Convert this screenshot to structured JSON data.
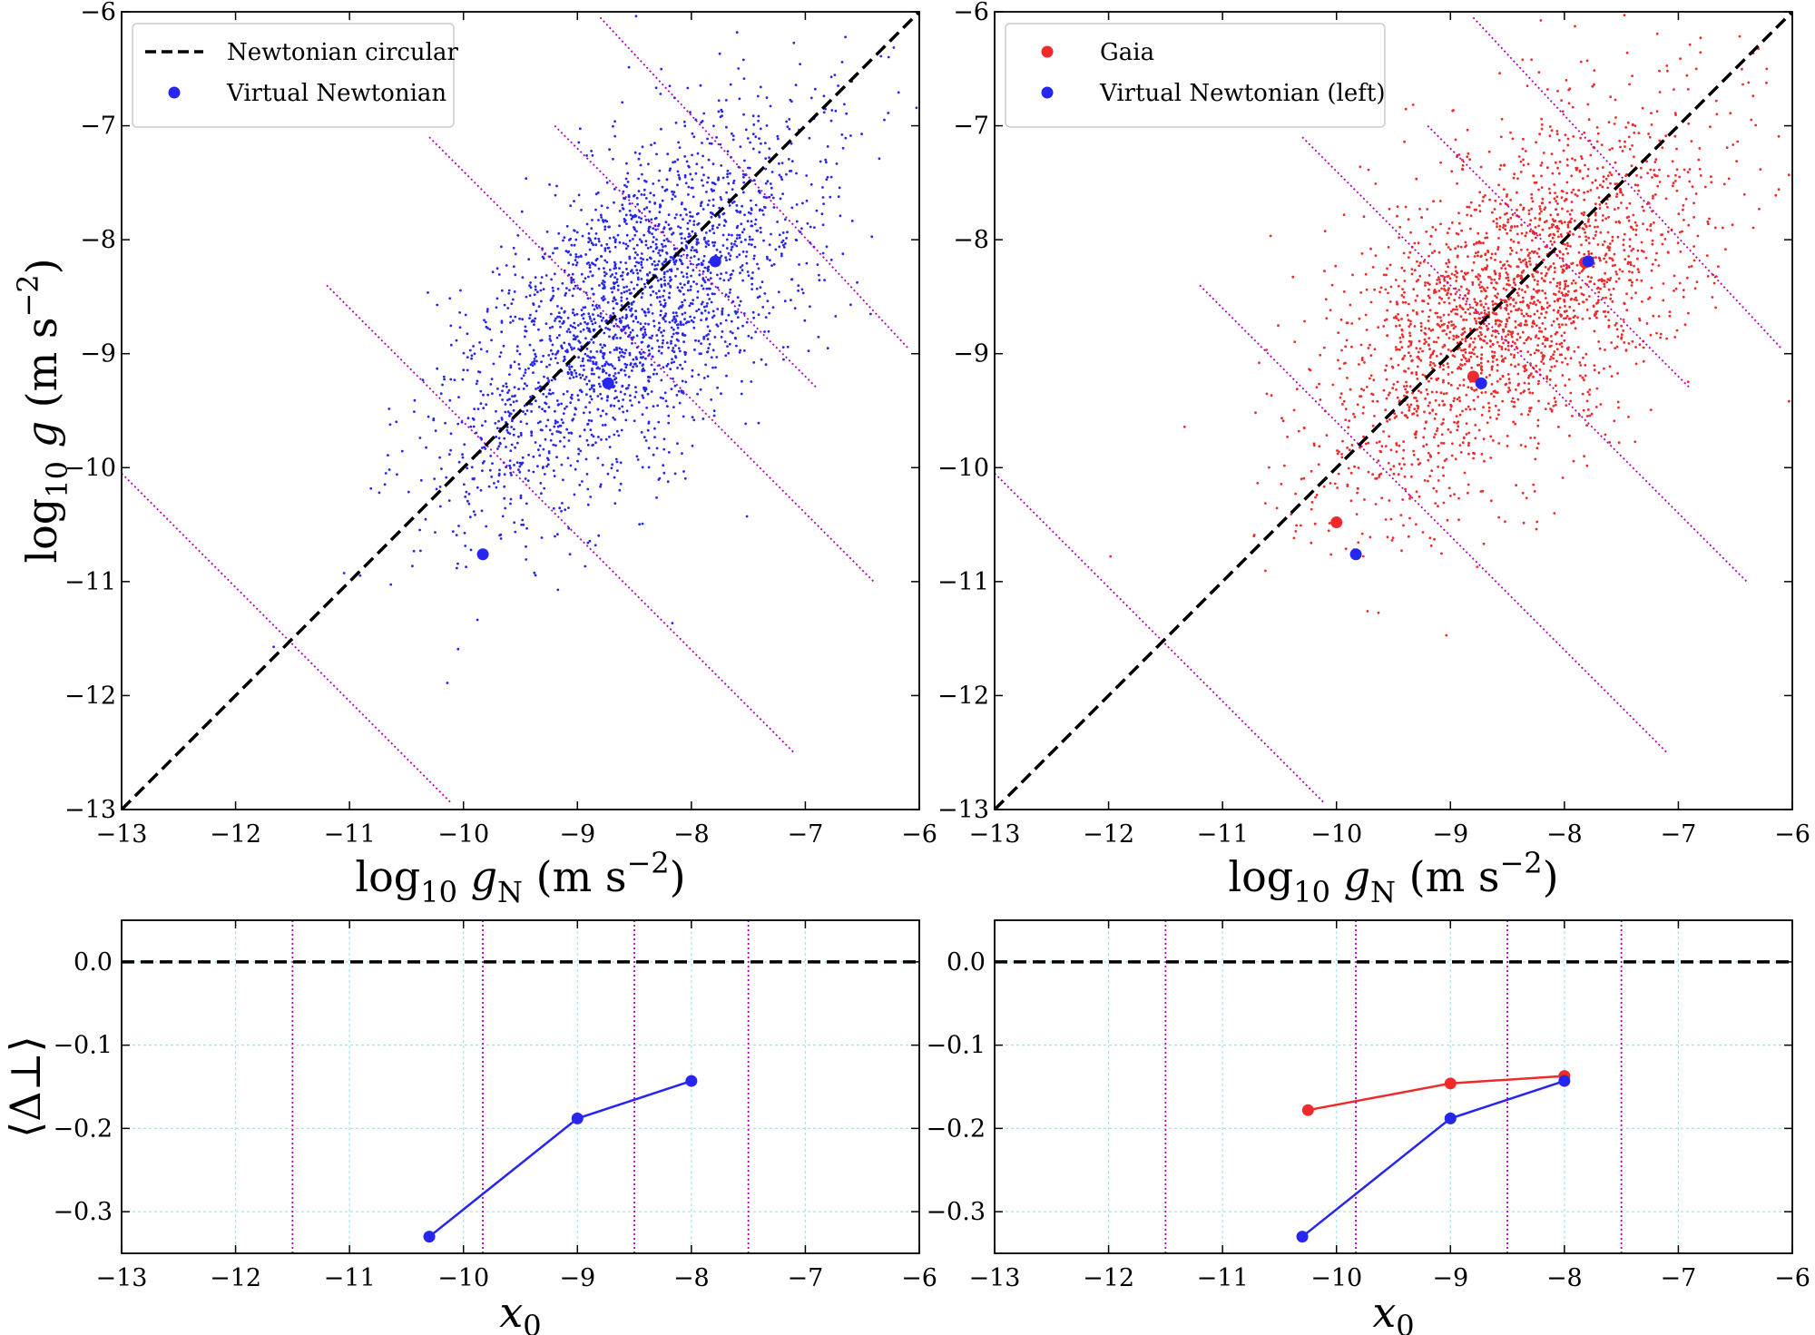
{
  "colors": {
    "virtual": "#2626ee",
    "gaia": "#ee2a2a",
    "bins": "#b400b4",
    "grid": "#9fe7ef",
    "diag": "#000000"
  },
  "chart_data": [
    {
      "id": "top-left",
      "type": "scatter",
      "xlabel_base": "log",
      "xlabel_sub": "10",
      "xlabel_var": "g",
      "xlabel_varsub": "N",
      "xlabel_unit": "(m s",
      "xlabel_exp": "−2",
      "xlabel_close": ")",
      "ylabel_base": "log",
      "ylabel_sub": "10",
      "ylabel_var": "g",
      "ylabel_unit": "(m s",
      "ylabel_exp": "−2",
      "ylabel_close": ")",
      "xlim": [
        -13,
        -6
      ],
      "ylim": [
        -13,
        -6
      ],
      "xticks": [
        "−13",
        "−12",
        "−11",
        "−10",
        "−9",
        "−8",
        "−7",
        "−6"
      ],
      "yticks": [
        "−13",
        "−12",
        "−11",
        "−10",
        "−9",
        "−8",
        "−7",
        "−6"
      ],
      "legend": [
        "Newtonian circular",
        "Virtual Newtonian"
      ],
      "legend_position": "top-left",
      "cloud": {
        "series": "Virtual Newtonian",
        "n_points": 2400,
        "center_x": -8.5,
        "center_y": -8.6,
        "spread_major": 1.05,
        "spread_minor": 0.5
      },
      "bin_medians": {
        "name": "Virtual Newtonian",
        "x": [
          -9.83,
          -8.73,
          -7.79
        ],
        "y": [
          -10.76,
          -9.26,
          -8.19
        ]
      },
      "bin_boundary_lines": [
        {
          "x": [
            -13,
            -10.1
          ],
          "y": [
            -10.05,
            -12.95
          ]
        },
        {
          "x": [
            -11.2,
            -7.1
          ],
          "y": [
            -8.4,
            -12.5
          ]
        },
        {
          "x": [
            -10.3,
            -6.4
          ],
          "y": [
            -7.1,
            -11.0
          ]
        },
        {
          "x": [
            -9.2,
            -6.9
          ],
          "y": [
            -7.0,
            -9.3
          ]
        },
        {
          "x": [
            -8.8,
            -6.1
          ],
          "y": [
            -6.05,
            -8.95
          ]
        }
      ],
      "diagonal": {
        "name": "Newtonian circular",
        "x": [
          -13,
          -6
        ],
        "y": [
          -13,
          -6
        ]
      }
    },
    {
      "id": "top-right",
      "type": "scatter",
      "xlabel_base": "log",
      "xlabel_sub": "10",
      "xlabel_var": "g",
      "xlabel_varsub": "N",
      "xlabel_unit": "(m s",
      "xlabel_exp": "−2",
      "xlabel_close": ")",
      "xlim": [
        -13,
        -6
      ],
      "ylim": [
        -13,
        -6
      ],
      "xticks": [
        "−13",
        "−12",
        "−11",
        "−10",
        "−9",
        "−8",
        "−7",
        "−6"
      ],
      "yticks": [
        "−13",
        "−12",
        "−11",
        "−10",
        "−9",
        "−8",
        "−7",
        "−6"
      ],
      "legend": [
        "Gaia",
        "Virtual Newtonian (left)"
      ],
      "legend_position": "top-left",
      "cloud": {
        "series": "Gaia",
        "n_points": 2400,
        "center_x": -8.45,
        "center_y": -8.55,
        "spread_major": 1.05,
        "spread_minor": 0.55
      },
      "bin_medians": [
        {
          "name": "Gaia",
          "x": [
            -10.0,
            -8.8,
            -7.82
          ],
          "y": [
            -10.48,
            -9.2,
            -8.2
          ]
        },
        {
          "name": "Virtual Newtonian (left)",
          "x": [
            -9.83,
            -8.73,
            -7.79
          ],
          "y": [
            -10.76,
            -9.26,
            -8.19
          ]
        }
      ],
      "bin_boundary_lines": [
        {
          "x": [
            -13,
            -10.1
          ],
          "y": [
            -10.05,
            -12.95
          ]
        },
        {
          "x": [
            -11.2,
            -7.1
          ],
          "y": [
            -8.4,
            -12.5
          ]
        },
        {
          "x": [
            -10.3,
            -6.4
          ],
          "y": [
            -7.1,
            -11.0
          ]
        },
        {
          "x": [
            -9.2,
            -6.9
          ],
          "y": [
            -7.0,
            -9.3
          ]
        },
        {
          "x": [
            -8.8,
            -6.1
          ],
          "y": [
            -6.05,
            -8.95
          ]
        }
      ],
      "diagonal": {
        "name": "Newtonian circular",
        "x": [
          -13,
          -6
        ],
        "y": [
          -13,
          -6
        ]
      }
    },
    {
      "id": "bottom-left",
      "type": "line",
      "xlabel": "x",
      "xlabel_sub": "0",
      "ylabel": "⟨Δ⊥⟩",
      "xlim": [
        -13,
        -6
      ],
      "ylim": [
        -0.35,
        0.05
      ],
      "xticks": [
        "−13",
        "−12",
        "−11",
        "−10",
        "−9",
        "−8",
        "−7",
        "−6"
      ],
      "yticks": [
        {
          "v": 0.0,
          "label": "0.0"
        },
        {
          "v": -0.1,
          "label": "−0.1"
        },
        {
          "v": -0.2,
          "label": "−0.2"
        },
        {
          "v": -0.3,
          "label": "−0.3"
        }
      ],
      "grid": true,
      "zero_line": 0.0,
      "bin_edges": [
        -11.5,
        -9.83,
        -8.5,
        -7.5
      ],
      "series": [
        {
          "name": "Virtual Newtonian",
          "x": [
            -10.3,
            -9.0,
            -8.0
          ],
          "y": [
            -0.33,
            -0.188,
            -0.143
          ]
        }
      ]
    },
    {
      "id": "bottom-right",
      "type": "line",
      "xlabel": "x",
      "xlabel_sub": "0",
      "xlim": [
        -13,
        -6
      ],
      "ylim": [
        -0.35,
        0.05
      ],
      "xticks": [
        "−13",
        "−12",
        "−11",
        "−10",
        "−9",
        "−8",
        "−7",
        "−6"
      ],
      "yticks": [
        {
          "v": 0.0,
          "label": "0.0"
        },
        {
          "v": -0.1,
          "label": "−0.1"
        },
        {
          "v": -0.2,
          "label": "−0.2"
        },
        {
          "v": -0.3,
          "label": "−0.3"
        }
      ],
      "grid": true,
      "zero_line": 0.0,
      "bin_edges": [
        -11.5,
        -9.83,
        -8.5,
        -7.5
      ],
      "series": [
        {
          "name": "Gaia",
          "x": [
            -10.25,
            -9.0,
            -8.0
          ],
          "y": [
            -0.178,
            -0.146,
            -0.137
          ]
        },
        {
          "name": "Virtual Newtonian",
          "x": [
            -10.3,
            -9.0,
            -8.0
          ],
          "y": [
            -0.33,
            -0.188,
            -0.143
          ]
        }
      ]
    }
  ]
}
